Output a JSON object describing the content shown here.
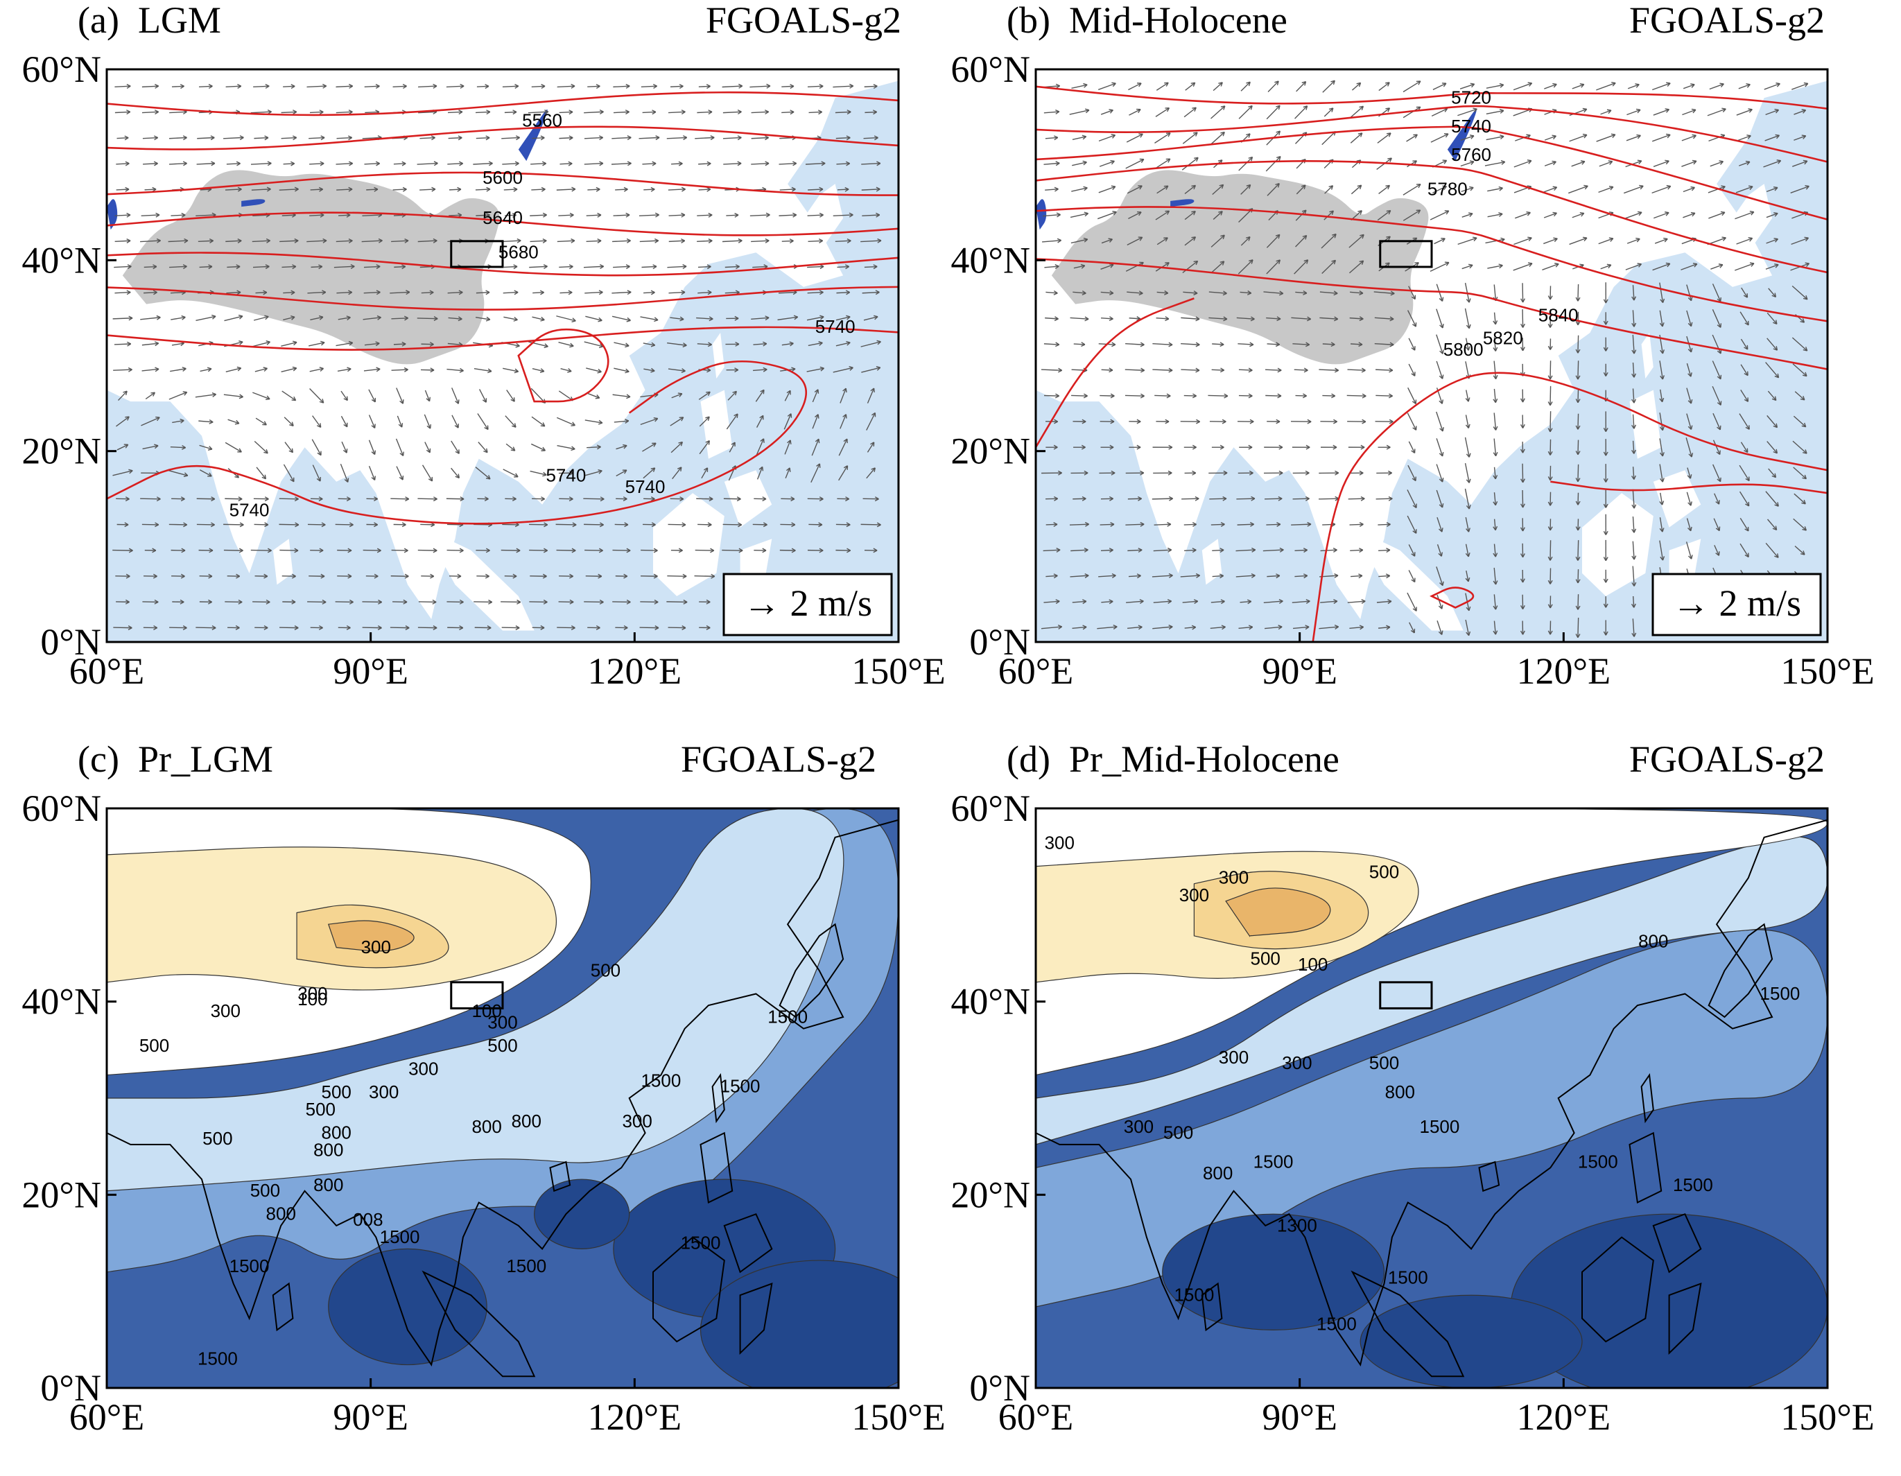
{
  "panels": [
    {
      "id": "a",
      "label": "(a)",
      "title": "LGM",
      "model": "FGOALS-g2",
      "kind": "wind",
      "contour_labels": [
        "5560",
        "5600",
        "5640",
        "5680",
        "5740",
        "5740",
        "5740",
        "5740"
      ],
      "reference_vector_label": "→ 2 m/s"
    },
    {
      "id": "b",
      "label": "(b)",
      "title": "Mid-Holocene",
      "model": "FGOALS-g2",
      "kind": "wind",
      "contour_labels": [
        "5720",
        "5740",
        "5760",
        "5780",
        "5800",
        "5820",
        "5840"
      ],
      "reference_vector_label": "→ 2 m/s"
    },
    {
      "id": "c",
      "label": "(c)",
      "title": "Pr_LGM",
      "model": "FGOALS-g2",
      "kind": "precip",
      "contour_labels": [
        "500",
        "300",
        "300",
        "300",
        "100",
        "100",
        "300",
        "500",
        "500",
        "300",
        "500",
        "500",
        "800",
        "300",
        "500",
        "800",
        "800",
        "800",
        "300",
        "800",
        "1500",
        "1500",
        "500",
        "800",
        "1500",
        "008",
        "1500",
        "1500",
        "1500",
        "1500",
        "1500"
      ]
    },
    {
      "id": "d",
      "label": "(d)",
      "title": "Pr_Mid-Holocene",
      "model": "FGOALS-g2",
      "kind": "precip",
      "contour_labels": [
        "300",
        "300",
        "300",
        "500",
        "100",
        "800",
        "500",
        "300",
        "300",
        "500",
        "800",
        "1500",
        "300",
        "500",
        "800",
        "1500",
        "1500",
        "1300",
        "1500",
        "1500",
        "1500",
        "1500",
        "1500"
      ]
    }
  ],
  "axes": {
    "x_ticks": [
      "60°E",
      "90°E",
      "120°E",
      "150°E"
    ],
    "y_ticks": [
      "60°N",
      "40°N",
      "20°N",
      "0°N"
    ],
    "lon_range": [
      60,
      150
    ],
    "lat_range": [
      0,
      60
    ]
  },
  "colors": {
    "ocean": "#cfe3f5",
    "plateau": "#c8c8c8",
    "geopotential_contour": "#d81e1e",
    "lake": "#3050b8",
    "precip_scale": [
      "#e9b56a",
      "#f5d592",
      "#fbecc0",
      "#fdf6e4",
      "#ffffff",
      "#eef5fc",
      "#c9e0f4",
      "#a6c9ec",
      "#7fa7da",
      "#5b82c2",
      "#3c62a8",
      "#22478c"
    ]
  }
}
